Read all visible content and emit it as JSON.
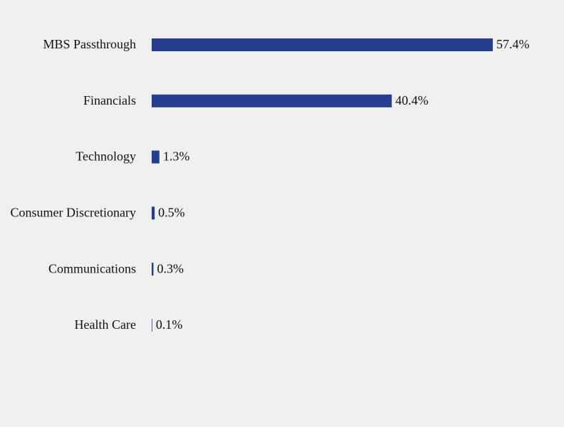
{
  "chart_data": {
    "type": "bar",
    "orientation": "horizontal",
    "categories": [
      "MBS Passthrough",
      "Financials",
      "Technology",
      "Consumer Discretionary",
      "Communications",
      "Health Care"
    ],
    "values": [
      57.4,
      40.4,
      1.3,
      0.5,
      0.3,
      0.1
    ],
    "value_labels": [
      "57.4%",
      "40.4%",
      "1.3%",
      "0.5%",
      "0.3%",
      "0.1%"
    ],
    "color": "#253f8e"
  }
}
